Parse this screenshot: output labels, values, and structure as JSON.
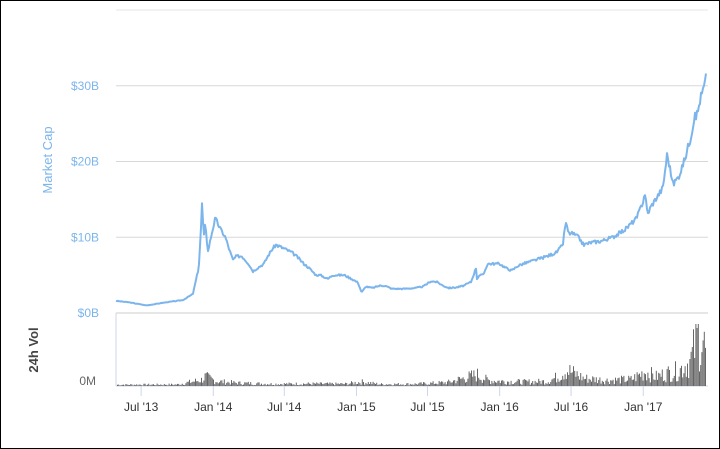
{
  "chart_data": [
    {
      "type": "line",
      "ylabel": "Market Cap",
      "ylim": [
        0,
        40
      ],
      "y_unit": "billions USD",
      "yticks": [
        "$0B",
        "$10B",
        "$20B",
        "$30B"
      ],
      "grid": true,
      "color": "#7cb5ec",
      "x": [
        "2013-04-28",
        "2013-06-01",
        "2013-07-15",
        "2013-09-01",
        "2013-10-15",
        "2013-11-10",
        "2013-11-25",
        "2013-12-01",
        "2013-12-04",
        "2013-12-07",
        "2013-12-12",
        "2013-12-18",
        "2013-12-22",
        "2013-12-28",
        "2014-01-06",
        "2014-01-20",
        "2014-02-01",
        "2014-02-10",
        "2014-02-20",
        "2014-03-01",
        "2014-03-15",
        "2014-04-01",
        "2014-04-12",
        "2014-04-25",
        "2014-05-10",
        "2014-05-20",
        "2014-06-01",
        "2014-06-10",
        "2014-07-01",
        "2014-07-20",
        "2014-08-01",
        "2014-08-20",
        "2014-09-01",
        "2014-09-20",
        "2014-10-01",
        "2014-10-20",
        "2014-11-01",
        "2014-11-20",
        "2014-12-01",
        "2014-12-20",
        "2015-01-05",
        "2015-01-14",
        "2015-01-25",
        "2015-02-10",
        "2015-03-01",
        "2015-03-15",
        "2015-04-01",
        "2015-04-15",
        "2015-05-01",
        "2015-06-01",
        "2015-06-20",
        "2015-07-10",
        "2015-07-25",
        "2015-08-10",
        "2015-08-25",
        "2015-09-15",
        "2015-10-01",
        "2015-10-20",
        "2015-11-02",
        "2015-11-04",
        "2015-11-10",
        "2015-11-20",
        "2015-12-01",
        "2015-12-15",
        "2016-01-01",
        "2016-01-15",
        "2016-02-01",
        "2016-02-15",
        "2016-03-01",
        "2016-04-01",
        "2016-05-01",
        "2016-05-25",
        "2016-06-10",
        "2016-06-17",
        "2016-06-25",
        "2016-07-05",
        "2016-07-20",
        "2016-08-02",
        "2016-08-20",
        "2016-09-15",
        "2016-10-15",
        "2016-11-15",
        "2016-12-15",
        "2017-01-01",
        "2017-01-05",
        "2017-01-12",
        "2017-01-20",
        "2017-02-01",
        "2017-02-20",
        "2017-03-03",
        "2017-03-18",
        "2017-04-01",
        "2017-04-15",
        "2017-05-01",
        "2017-05-10",
        "2017-05-20",
        "2017-05-25",
        "2017-05-31",
        "2017-06-06",
        "2017-06-10"
      ],
      "values": [
        1.6,
        1.4,
        1.0,
        1.4,
        1.7,
        2.5,
        6.0,
        11.5,
        15.5,
        9.5,
        12.0,
        8.0,
        9.0,
        10.5,
        12.5,
        11.0,
        10.0,
        8.5,
        7.0,
        7.5,
        7.5,
        6.5,
        5.5,
        6.0,
        6.5,
        7.5,
        8.5,
        9.0,
        8.5,
        8.0,
        7.5,
        6.5,
        6.0,
        5.0,
        5.0,
        4.5,
        5.0,
        5.0,
        5.0,
        4.5,
        4.0,
        2.7,
        3.5,
        3.3,
        3.6,
        3.6,
        3.2,
        3.2,
        3.2,
        3.3,
        3.5,
        4.2,
        4.1,
        3.6,
        3.3,
        3.4,
        3.6,
        4.1,
        6.0,
        4.5,
        5.0,
        5.0,
        6.5,
        6.5,
        6.5,
        6.0,
        5.6,
        6.2,
        6.5,
        7.0,
        7.5,
        8.0,
        9.0,
        12.0,
        10.5,
        10.5,
        10.0,
        9.0,
        9.3,
        9.5,
        10.0,
        11.0,
        12.5,
        14.8,
        16.0,
        13.0,
        14.0,
        15.0,
        16.5,
        21.0,
        17.0,
        18.0,
        20.0,
        23.0,
        25.5,
        26.5,
        28.0,
        29.0,
        30.0,
        31.0
      ]
    },
    {
      "type": "bar",
      "ylabel": "24h Vol",
      "yticks": [
        "0M"
      ],
      "color": "#666666",
      "x": [
        "2013-04-28",
        "2013-10-01",
        "2013-12-01",
        "2013-12-10",
        "2014-01-10",
        "2014-03-01",
        "2014-06-01",
        "2014-09-01",
        "2014-12-01",
        "2015-01-14",
        "2015-03-01",
        "2015-06-01",
        "2015-08-20",
        "2015-11-04",
        "2015-12-01",
        "2016-01-15",
        "2016-03-01",
        "2016-05-01",
        "2016-05-27",
        "2016-06-17",
        "2016-08-02",
        "2016-10-01",
        "2016-12-01",
        "2017-01-05",
        "2017-02-01",
        "2017-03-03",
        "2017-04-01",
        "2017-05-01",
        "2017-05-20",
        "2017-05-25",
        "2017-06-01",
        "2017-06-08"
      ],
      "values": [
        25,
        30,
        120,
        180,
        90,
        60,
        40,
        45,
        40,
        80,
        35,
        40,
        70,
        220,
        110,
        90,
        80,
        90,
        180,
        320,
        150,
        110,
        130,
        280,
        180,
        250,
        300,
        500,
        1000,
        850,
        900,
        650
      ]
    }
  ],
  "x_axis": {
    "labels": [
      "Jul '13",
      "Jan '14",
      "Jul '14",
      "Jan '15",
      "Jul '15",
      "Jan '16",
      "Jul '16",
      "Jan '17"
    ],
    "dates": [
      "2013-07-01",
      "2014-01-01",
      "2014-07-01",
      "2015-01-01",
      "2015-07-01",
      "2016-01-01",
      "2016-07-01",
      "2017-01-01"
    ]
  }
}
